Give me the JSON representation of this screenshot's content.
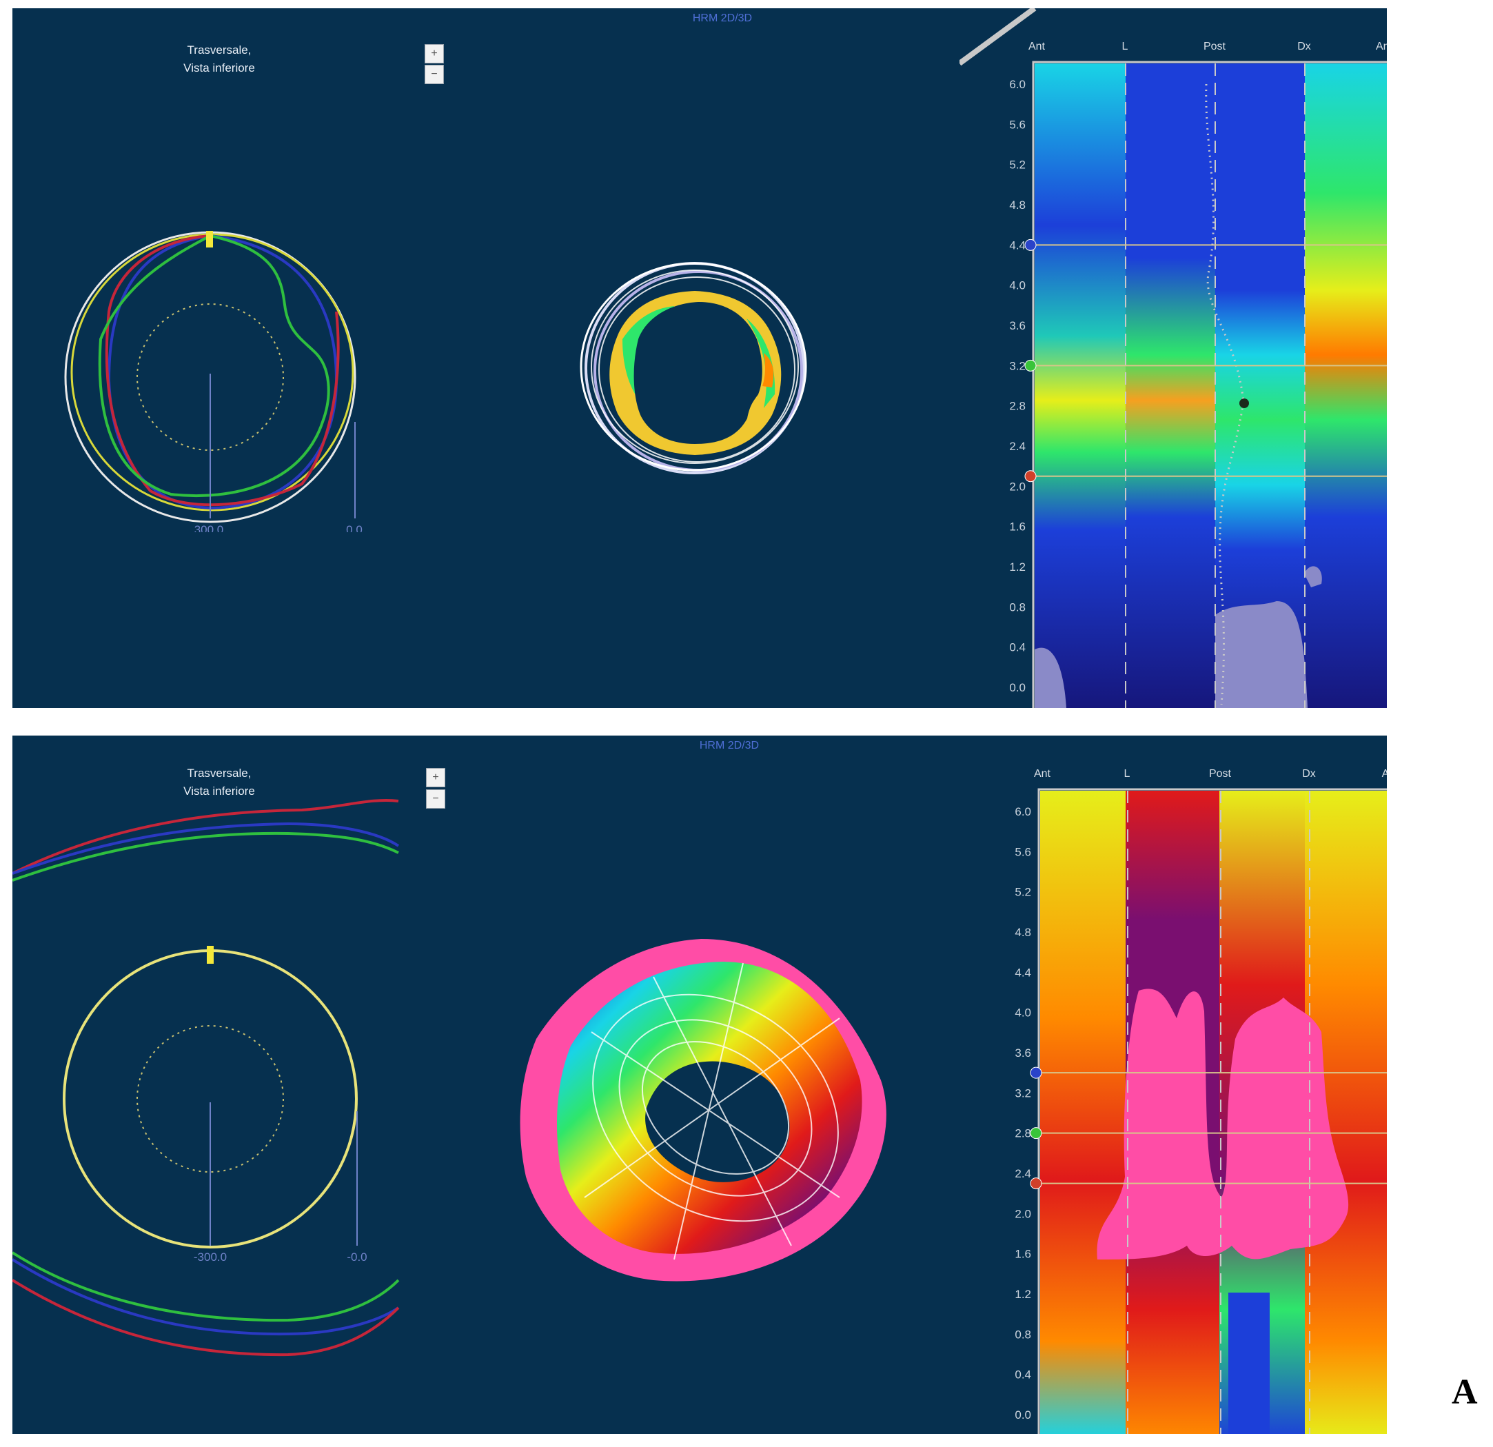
{
  "figure_label": "A",
  "panels": [
    {
      "app_title": "HRM 2D/3D",
      "view_title": [
        "Trasversale,",
        "Vista inferiore"
      ],
      "tool_buttons": [
        {
          "icon": "zoom-in-icon"
        },
        {
          "icon": "zoom-out-icon"
        }
      ],
      "scale_labels": [
        "300.0",
        "0.0"
      ],
      "map": {
        "columns": [
          "Ant",
          "L",
          "Post",
          "Dx",
          "Ant"
        ],
        "y_ticks": [
          "6.0",
          "5.6",
          "5.2",
          "4.8",
          "4.4",
          "4.0",
          "3.6",
          "3.2",
          "2.8",
          "2.4",
          "2.0",
          "1.6",
          "1.2",
          "0.8",
          "0.4",
          "0.0"
        ],
        "markers": [
          {
            "value": 4.4,
            "color": "#2a43c9"
          },
          {
            "value": 3.2,
            "color": "#39c43a"
          },
          {
            "value": 2.1,
            "color": "#d0402a"
          }
        ]
      }
    },
    {
      "app_title": "HRM 2D/3D",
      "view_title": [
        "Trasversale,",
        "Vista inferiore"
      ],
      "tool_buttons": [
        {
          "icon": "zoom-in-icon"
        },
        {
          "icon": "zoom-out-icon"
        }
      ],
      "scale_labels": [
        "-300.0",
        "-0.0"
      ],
      "map": {
        "columns": [
          "Ant",
          "L",
          "Post",
          "Dx",
          "A"
        ],
        "y_ticks": [
          "6.0",
          "5.6",
          "5.2",
          "4.8",
          "4.4",
          "4.0",
          "3.6",
          "3.2",
          "2.8",
          "2.4",
          "2.0",
          "1.6",
          "1.2",
          "0.8",
          "0.4",
          "0.0"
        ],
        "markers": [
          {
            "value": 3.4,
            "color": "#2a43c9"
          },
          {
            "value": 2.8,
            "color": "#39c43a"
          },
          {
            "value": 2.3,
            "color": "#d0402a"
          }
        ]
      }
    }
  ],
  "colors": {
    "panel_bg": "#06304f",
    "pressure_scale": [
      "#16167a",
      "#1c3fd9",
      "#19d4e6",
      "#2ee66b",
      "#e6ee1a",
      "#ff8a00",
      "#e01a1a",
      "#7a0f70",
      "#ff4da6"
    ]
  }
}
